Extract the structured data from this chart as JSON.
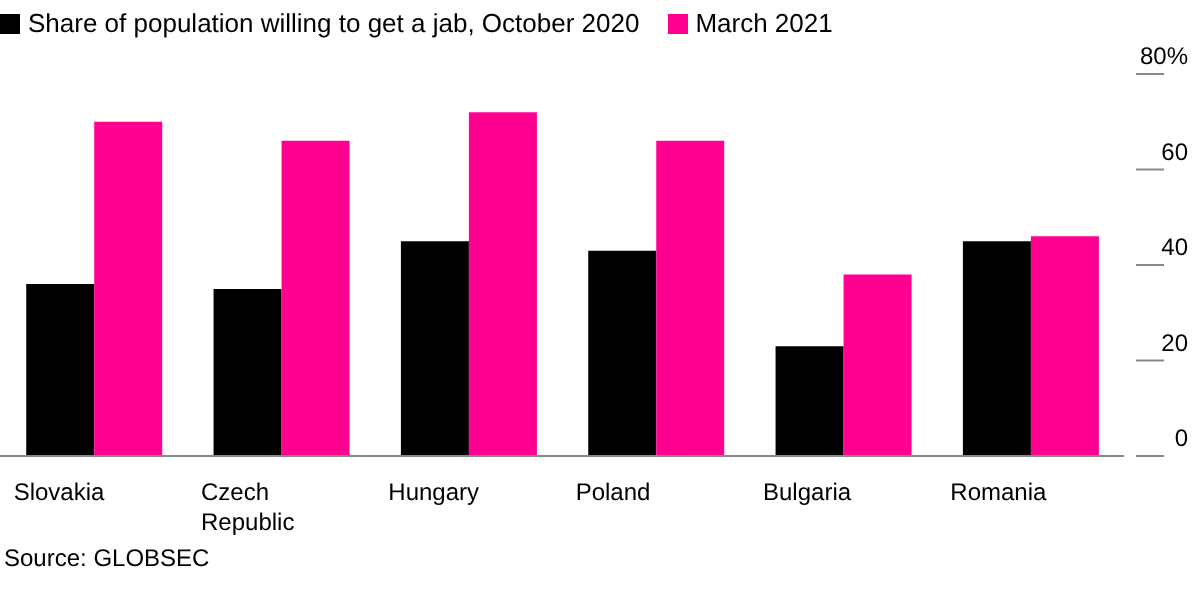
{
  "chart_data": {
    "type": "bar",
    "categories": [
      "Slovakia",
      "Czech Republic",
      "Hungary",
      "Poland",
      "Bulgaria",
      "Romania"
    ],
    "series": [
      {
        "name": "Share of population willing to get a jab, October 2020",
        "color": "#000000",
        "values": [
          36,
          35,
          45,
          43,
          23,
          45
        ]
      },
      {
        "name": "March 2021",
        "color": "#ff0090",
        "values": [
          70,
          66,
          72,
          66,
          38,
          46
        ]
      }
    ],
    "ylim": [
      0,
      80
    ],
    "yticks": [
      0,
      20,
      40,
      60,
      {
        "value": 80,
        "label": "80%"
      }
    ],
    "legend": "top left",
    "annotations": [
      "Source: GLOBSEC"
    ]
  }
}
